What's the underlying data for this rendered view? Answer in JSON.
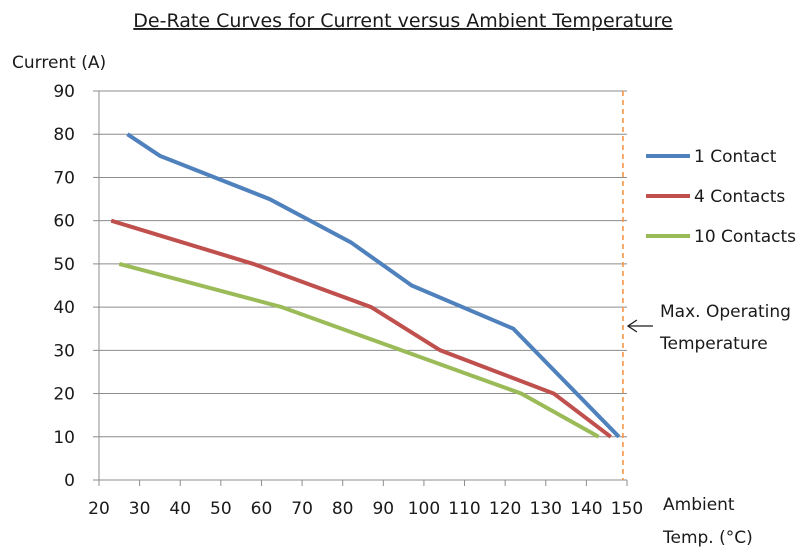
{
  "chart_data": {
    "type": "line",
    "title": "De-Rate Curves for Current versus Ambient Temperature",
    "ylabel": "Current (A)",
    "xlabel_lines": [
      "Ambient",
      "Temp. (°C)"
    ],
    "xlim": [
      20,
      150
    ],
    "ylim": [
      0,
      90
    ],
    "x_ticks": [
      "20",
      "30",
      "40",
      "50",
      "60",
      "70",
      "80",
      "90",
      "100",
      "110",
      "120",
      "130",
      "140",
      "150"
    ],
    "y_ticks": [
      "0",
      "10",
      "20",
      "30",
      "40",
      "50",
      "60",
      "70",
      "80",
      "90"
    ],
    "grid": true,
    "legend_position": "right",
    "series": [
      {
        "name": "1 Contact",
        "color": "#4f81bd",
        "points": [
          [
            27,
            80
          ],
          [
            35,
            75
          ],
          [
            62,
            65
          ],
          [
            82,
            55
          ],
          [
            97,
            45
          ],
          [
            122,
            35
          ],
          [
            148,
            10
          ]
        ]
      },
      {
        "name": "4 Contacts",
        "color": "#c0504d",
        "points": [
          [
            23,
            60
          ],
          [
            58,
            50
          ],
          [
            87,
            40
          ],
          [
            104,
            30
          ],
          [
            132,
            20
          ],
          [
            146,
            10
          ]
        ]
      },
      {
        "name": "10 Contacts",
        "color": "#9bbb59",
        "points": [
          [
            25,
            50
          ],
          [
            65,
            40
          ],
          [
            124,
            20
          ],
          [
            143,
            10
          ]
        ]
      }
    ],
    "reference_line": {
      "x": 149,
      "color": "#f79646",
      "label_lines": [
        "Max. Operating",
        "Temperature"
      ]
    }
  }
}
